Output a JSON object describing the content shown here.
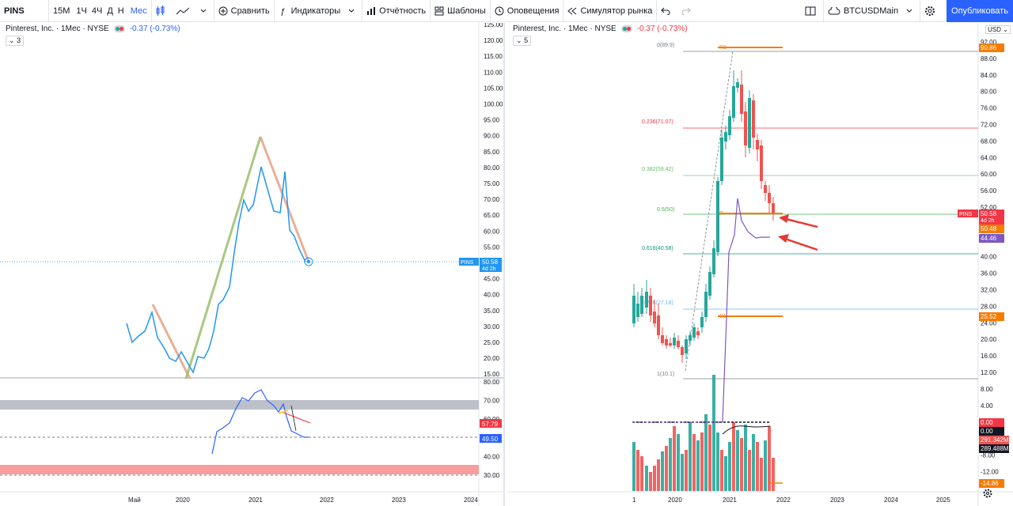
{
  "toolbar": {
    "symbol": "PINS",
    "intervals": [
      "15M",
      "1Ч",
      "4Ч",
      "Д",
      "Н",
      "Мес"
    ],
    "compare": "Сравнить",
    "indicators": "Индикаторы",
    "reports": "Отчётность",
    "templates": "Шаблоны",
    "alerts": "Оповещения",
    "replay": "Симулятор рынка",
    "layout_name": "BTCUSDMain",
    "publish": "Опубликовать"
  },
  "left_chart": {
    "legend_title": "Pinterest, Inc. · 1Мес · NYSE",
    "legend_change": "-0.37 (-0.73%)",
    "badge": "3",
    "price_ticks": [
      "125.00",
      "120.00",
      "115.00",
      "110.00",
      "105.00",
      "100.00",
      "95.00",
      "90.00",
      "85.00",
      "80.00",
      "75.00",
      "70.00",
      "65.00",
      "60.00",
      "55.00",
      "50.00",
      "45.00",
      "40.00",
      "35.00",
      "30.00",
      "25.00",
      "20.00",
      "15.00"
    ],
    "price_label_symbol": "PINS",
    "price_label_value": "50.58",
    "price_label_time": "4d 2h",
    "osc_ticks": [
      "80.00",
      "70.00",
      "60.00",
      "50.00",
      "40.00",
      "30.00"
    ],
    "osc_label_1": "57.79",
    "osc_label_2": "49.50",
    "time_ticks": [
      "Май",
      "2020",
      "2021",
      "2022",
      "2023",
      "2024"
    ]
  },
  "right_chart": {
    "legend_title": "Pinterest, Inc. · 1Мес · NYSE",
    "legend_change": "-0.37 (-0.73%)",
    "badge": "5",
    "currency": "USD",
    "price_ticks": [
      "92.00",
      "88.00",
      "84.00",
      "80.00",
      "76.00",
      "72.00",
      "68.00",
      "64.00",
      "60.00",
      "56.00",
      "52.00",
      "48.00",
      "44.00",
      "40.00",
      "36.00",
      "32.00",
      "28.00",
      "24.00",
      "20.00",
      "16.00",
      "12.00",
      "8.00",
      "4.00",
      "0.00",
      "-4.00",
      "-8.00",
      "-12.00"
    ],
    "fib_labels": [
      "0(89.9)",
      "0.236(71.07)",
      "0.382(59.42)",
      "0.5(50)",
      "0.618(40.58)",
      "0.786(27.18)",
      "1(10.1)"
    ],
    "pivot_labels": [
      "R1",
      "P",
      "S1"
    ],
    "labels": {
      "r1": "90.86",
      "pins_symbol": "PINS",
      "pins_value": "50.58",
      "pins_time": "4d 2h",
      "p": "50.48",
      "ma": "44.46",
      "s1": "25.52",
      "zero": "0.00",
      "zero2": "0.00",
      "vol1": "291.342M",
      "vol2": "289.488M",
      "neg": "-14.86"
    },
    "time_ticks": [
      "1",
      "2020",
      "2021",
      "2022",
      "2023",
      "2024",
      "2025"
    ]
  },
  "colors": {
    "accent": "#2962ff",
    "up": "#26a69a",
    "down": "#ef5350",
    "orange": "#f57c00",
    "purple": "#7e57c2"
  }
}
